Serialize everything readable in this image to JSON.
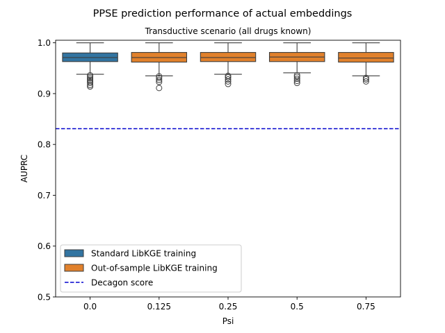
{
  "chart_data": {
    "type": "box",
    "suptitle": "PPSE prediction performance of actual embeddings",
    "title": "Transductive scenario (all drugs known)",
    "xlabel": "Psi",
    "ylabel": "AUPRC",
    "ylim": [
      0.5,
      1.005
    ],
    "yticks": [
      0.5,
      0.6,
      0.7,
      0.8,
      0.9,
      1.0
    ],
    "ytick_labels": [
      "0.5",
      "0.6",
      "0.7",
      "0.8",
      "0.9",
      "1.0"
    ],
    "categories": [
      "0.0",
      "0.125",
      "0.25",
      "0.5",
      "0.75"
    ],
    "grid": false,
    "legend_position": "lower-left",
    "colors": {
      "standard": "#3274a1",
      "out_of_sample": "#e1812c",
      "decagon": "#0000cd"
    },
    "series": [
      {
        "name": "Standard LibKGE training",
        "color_key": "standard",
        "boxes": [
          {
            "category": "0.0",
            "whisker_low": 0.938,
            "q1": 0.963,
            "median": 0.971,
            "q3": 0.98,
            "whisker_high": 1.0,
            "outliers": [
              0.914,
              0.917,
              0.921,
              0.924,
              0.927,
              0.93,
              0.933,
              0.936
            ]
          }
        ]
      },
      {
        "name": "Out-of-sample LibKGE training",
        "color_key": "out_of_sample",
        "boxes": [
          {
            "category": "0.125",
            "whisker_low": 0.935,
            "q1": 0.962,
            "median": 0.971,
            "q3": 0.981,
            "whisker_high": 1.0,
            "outliers": [
              0.911,
              0.923,
              0.927,
              0.931,
              0.934
            ]
          },
          {
            "category": "0.25",
            "whisker_low": 0.938,
            "q1": 0.963,
            "median": 0.971,
            "q3": 0.981,
            "whisker_high": 1.0,
            "outliers": [
              0.919,
              0.924,
              0.928,
              0.932,
              0.935
            ]
          },
          {
            "category": "0.5",
            "whisker_low": 0.941,
            "q1": 0.963,
            "median": 0.972,
            "q3": 0.981,
            "whisker_high": 1.0,
            "outliers": [
              0.921,
              0.925,
              0.929,
              0.933,
              0.936
            ]
          },
          {
            "category": "0.75",
            "whisker_low": 0.935,
            "q1": 0.962,
            "median": 0.97,
            "q3": 0.981,
            "whisker_high": 1.0,
            "outliers": [
              0.924,
              0.928,
              0.931
            ]
          }
        ]
      }
    ],
    "reference_line": {
      "name": "Decagon score",
      "value": 0.831,
      "color_key": "decagon",
      "style": "dashed"
    },
    "legend": [
      {
        "label": "Standard LibKGE training",
        "kind": "patch",
        "color_key": "standard"
      },
      {
        "label": "Out-of-sample LibKGE training",
        "kind": "patch",
        "color_key": "out_of_sample"
      },
      {
        "label": "Decagon score",
        "kind": "dashed-line",
        "color_key": "decagon"
      }
    ]
  }
}
